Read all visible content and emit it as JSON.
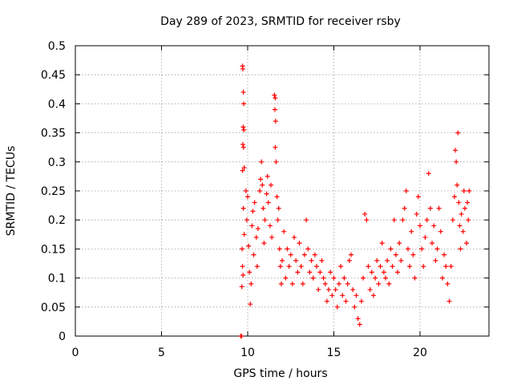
{
  "chart_data": {
    "type": "scatter",
    "title": "Day 289 of 2023, SRMTID for receiver rsby",
    "xlabel": "GPS time / hours",
    "ylabel": "SRMTID / TECUs",
    "xlim": [
      0,
      24
    ],
    "ylim": [
      0,
      0.5
    ],
    "xticks": [
      0,
      5,
      10,
      15,
      20
    ],
    "xtick_labels": [
      "0",
      "5",
      "10",
      "15",
      "20"
    ],
    "yticks": [
      0,
      0.05,
      0.1,
      0.15,
      0.2,
      0.25,
      0.3,
      0.35,
      0.4,
      0.45,
      0.5
    ],
    "ytick_labels": [
      "0",
      "0.05",
      "0.1",
      "0.15",
      "0.2",
      "0.25",
      "0.3",
      "0.35",
      "0.4",
      "0.45",
      "0.5"
    ],
    "grid": true,
    "marker": "+",
    "color": "#ff0000",
    "series": [
      {
        "name": "SRMTID",
        "points": [
          [
            9.6,
            0.0
          ],
          [
            9.65,
            0.0
          ],
          [
            9.7,
            0.465
          ],
          [
            9.72,
            0.46
          ],
          [
            9.75,
            0.42
          ],
          [
            9.77,
            0.4
          ],
          [
            9.74,
            0.36
          ],
          [
            9.78,
            0.355
          ],
          [
            9.72,
            0.33
          ],
          [
            9.76,
            0.325
          ],
          [
            9.7,
            0.285
          ],
          [
            9.8,
            0.29
          ],
          [
            9.75,
            0.22
          ],
          [
            9.68,
            0.15
          ],
          [
            9.7,
            0.12
          ],
          [
            9.66,
            0.085
          ],
          [
            9.73,
            0.105
          ],
          [
            9.8,
            0.175
          ],
          [
            9.9,
            0.25
          ],
          [
            9.95,
            0.2
          ],
          [
            10.0,
            0.24
          ],
          [
            10.05,
            0.155
          ],
          [
            10.1,
            0.11
          ],
          [
            10.15,
            0.055
          ],
          [
            10.2,
            0.09
          ],
          [
            10.25,
            0.19
          ],
          [
            10.3,
            0.215
          ],
          [
            10.35,
            0.14
          ],
          [
            10.4,
            0.23
          ],
          [
            10.5,
            0.17
          ],
          [
            10.55,
            0.12
          ],
          [
            10.6,
            0.185
          ],
          [
            10.7,
            0.25
          ],
          [
            10.75,
            0.27
          ],
          [
            10.8,
            0.3
          ],
          [
            10.85,
            0.26
          ],
          [
            10.9,
            0.22
          ],
          [
            10.95,
            0.16
          ],
          [
            11.0,
            0.2
          ],
          [
            11.1,
            0.245
          ],
          [
            11.15,
            0.275
          ],
          [
            11.2,
            0.23
          ],
          [
            11.3,
            0.19
          ],
          [
            11.35,
            0.26
          ],
          [
            11.4,
            0.17
          ],
          [
            11.55,
            0.415
          ],
          [
            11.6,
            0.41
          ],
          [
            11.58,
            0.39
          ],
          [
            11.62,
            0.37
          ],
          [
            11.6,
            0.325
          ],
          [
            11.65,
            0.3
          ],
          [
            11.7,
            0.24
          ],
          [
            11.75,
            0.2
          ],
          [
            11.8,
            0.22
          ],
          [
            11.85,
            0.15
          ],
          [
            11.9,
            0.12
          ],
          [
            11.95,
            0.09
          ],
          [
            12.0,
            0.13
          ],
          [
            12.1,
            0.18
          ],
          [
            12.2,
            0.1
          ],
          [
            12.3,
            0.15
          ],
          [
            12.4,
            0.12
          ],
          [
            12.5,
            0.14
          ],
          [
            12.6,
            0.09
          ],
          [
            12.7,
            0.17
          ],
          [
            12.8,
            0.13
          ],
          [
            12.9,
            0.11
          ],
          [
            13.0,
            0.16
          ],
          [
            13.1,
            0.12
          ],
          [
            13.2,
            0.09
          ],
          [
            13.3,
            0.14
          ],
          [
            13.4,
            0.2
          ],
          [
            13.5,
            0.15
          ],
          [
            13.6,
            0.11
          ],
          [
            13.7,
            0.13
          ],
          [
            13.8,
            0.1
          ],
          [
            13.9,
            0.14
          ],
          [
            14.0,
            0.12
          ],
          [
            14.1,
            0.08
          ],
          [
            14.2,
            0.11
          ],
          [
            14.3,
            0.13
          ],
          [
            14.4,
            0.1
          ],
          [
            14.5,
            0.09
          ],
          [
            14.6,
            0.06
          ],
          [
            14.7,
            0.08
          ],
          [
            14.8,
            0.11
          ],
          [
            14.9,
            0.07
          ],
          [
            15.0,
            0.1
          ],
          [
            15.1,
            0.08
          ],
          [
            15.2,
            0.05
          ],
          [
            15.3,
            0.09
          ],
          [
            15.4,
            0.12
          ],
          [
            15.5,
            0.07
          ],
          [
            15.6,
            0.1
          ],
          [
            15.7,
            0.06
          ],
          [
            15.8,
            0.09
          ],
          [
            15.9,
            0.13
          ],
          [
            16.0,
            0.14
          ],
          [
            16.1,
            0.08
          ],
          [
            16.2,
            0.05
          ],
          [
            16.3,
            0.07
          ],
          [
            16.4,
            0.03
          ],
          [
            16.5,
            0.02
          ],
          [
            16.6,
            0.06
          ],
          [
            16.7,
            0.1
          ],
          [
            16.8,
            0.21
          ],
          [
            16.9,
            0.2
          ],
          [
            17.0,
            0.12
          ],
          [
            17.1,
            0.08
          ],
          [
            17.2,
            0.11
          ],
          [
            17.3,
            0.07
          ],
          [
            17.4,
            0.1
          ],
          [
            17.5,
            0.13
          ],
          [
            17.6,
            0.09
          ],
          [
            17.7,
            0.12
          ],
          [
            17.8,
            0.16
          ],
          [
            17.9,
            0.11
          ],
          [
            18.0,
            0.1
          ],
          [
            18.1,
            0.13
          ],
          [
            18.2,
            0.09
          ],
          [
            18.3,
            0.15
          ],
          [
            18.4,
            0.12
          ],
          [
            18.5,
            0.2
          ],
          [
            18.6,
            0.14
          ],
          [
            18.7,
            0.11
          ],
          [
            18.8,
            0.16
          ],
          [
            18.9,
            0.13
          ],
          [
            19.0,
            0.2
          ],
          [
            19.1,
            0.22
          ],
          [
            19.2,
            0.25
          ],
          [
            19.3,
            0.15
          ],
          [
            19.4,
            0.12
          ],
          [
            19.5,
            0.18
          ],
          [
            19.6,
            0.14
          ],
          [
            19.7,
            0.1
          ],
          [
            19.8,
            0.21
          ],
          [
            19.9,
            0.24
          ],
          [
            20.0,
            0.19
          ],
          [
            20.1,
            0.15
          ],
          [
            20.2,
            0.12
          ],
          [
            20.3,
            0.17
          ],
          [
            20.4,
            0.2
          ],
          [
            20.5,
            0.28
          ],
          [
            20.6,
            0.22
          ],
          [
            20.7,
            0.16
          ],
          [
            20.8,
            0.19
          ],
          [
            20.9,
            0.13
          ],
          [
            21.0,
            0.15
          ],
          [
            21.1,
            0.22
          ],
          [
            21.2,
            0.18
          ],
          [
            21.3,
            0.1
          ],
          [
            21.4,
            0.14
          ],
          [
            21.5,
            0.12
          ],
          [
            21.6,
            0.09
          ],
          [
            21.7,
            0.06
          ],
          [
            21.8,
            0.12
          ],
          [
            21.9,
            0.2
          ],
          [
            22.0,
            0.24
          ],
          [
            22.05,
            0.32
          ],
          [
            22.1,
            0.3
          ],
          [
            22.15,
            0.26
          ],
          [
            22.2,
            0.35
          ],
          [
            22.25,
            0.23
          ],
          [
            22.3,
            0.19
          ],
          [
            22.35,
            0.15
          ],
          [
            22.4,
            0.21
          ],
          [
            22.5,
            0.18
          ],
          [
            22.55,
            0.25
          ],
          [
            22.6,
            0.22
          ],
          [
            22.7,
            0.16
          ],
          [
            22.75,
            0.23
          ],
          [
            22.8,
            0.2
          ],
          [
            22.85,
            0.25
          ]
        ]
      }
    ]
  }
}
